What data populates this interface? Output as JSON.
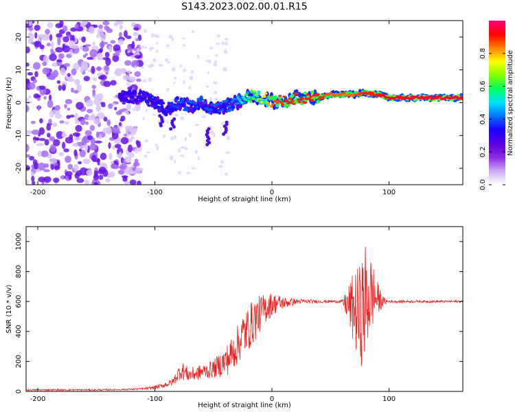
{
  "chart_data": [
    {
      "type": "heatmap",
      "title": "S143.2023.002.00.01.R15",
      "xlabel": "Height of straight line (km)",
      "ylabel": "Frequency (Hz)",
      "xlim": [
        -210,
        163
      ],
      "ylim": [
        -25,
        25
      ],
      "xticks": [
        -200,
        -100,
        0,
        100
      ],
      "yticks": [
        -20,
        -10,
        0,
        10,
        20
      ],
      "colorbar": {
        "label": "Normalized spectral amplitude",
        "range": [
          0,
          1
        ],
        "ticks": [
          "0.0",
          "0.2",
          "0.4",
          "0.6",
          "0.8"
        ],
        "colormap": [
          "#ffffff",
          "#cfa9f5",
          "#8a2be2",
          "#5a00e0",
          "#1e00ff",
          "#0070ff",
          "#00e0ff",
          "#00ff60",
          "#80ff00",
          "#ffff00",
          "#ff8000",
          "#ff0000",
          "#ff0080"
        ]
      },
      "ridge": {
        "x": [
          -130,
          -110,
          -100,
          -90,
          -80,
          -70,
          -60,
          -50,
          -40,
          -30,
          -20,
          -10,
          0,
          10,
          20,
          30,
          40,
          50,
          60,
          70,
          80,
          90,
          100,
          110,
          120,
          130,
          140,
          150,
          163
        ],
        "frequency": [
          2,
          1.5,
          0,
          -2,
          0,
          -1,
          0,
          -2,
          -1,
          0,
          2,
          1.5,
          0.5,
          0.5,
          1.5,
          1.5,
          1.5,
          2.5,
          2.5,
          2.5,
          3,
          2.5,
          1.5,
          1.5,
          1.5,
          1.5,
          1.5,
          1.5,
          1.5
        ],
        "amplitude": [
          0.3,
          0.35,
          0.35,
          0.35,
          0.4,
          0.4,
          0.4,
          0.4,
          0.4,
          0.45,
          0.6,
          0.7,
          0.85,
          0.9,
          0.9,
          0.9,
          0.9,
          0.85,
          0.85,
          0.85,
          0.9,
          0.9,
          0.95,
          0.95,
          0.95,
          0.95,
          0.95,
          0.95,
          0.95
        ]
      },
      "noise_region": {
        "x_from": -210,
        "x_to": -120,
        "max_amplitude": 0.15
      }
    },
    {
      "type": "line",
      "title": "",
      "xlabel": "Height of straight line (km)",
      "ylabel": "SNR (10 * v/v)",
      "xlim": [
        -210,
        163
      ],
      "ylim": [
        0,
        1100
      ],
      "xticks": [
        -200,
        -100,
        0,
        100
      ],
      "yticks": [
        0,
        200,
        400,
        600,
        800,
        1000
      ],
      "color": "#e8211f",
      "series": [
        {
          "x": [
            -210,
            -190,
            -170,
            -150,
            -130,
            -115,
            -105,
            -95,
            -85,
            -78,
            -70,
            -60,
            -50,
            -40,
            -35,
            -30,
            -25,
            -20,
            -15,
            -10,
            -5,
            0,
            5,
            10,
            20,
            30,
            40,
            50,
            60,
            70,
            75,
            80,
            85,
            90,
            95,
            100,
            110,
            120,
            130,
            140,
            150,
            163
          ],
          "values": [
            10,
            10,
            10,
            10,
            12,
            15,
            20,
            35,
            60,
            140,
            110,
            130,
            150,
            200,
            240,
            300,
            380,
            420,
            480,
            520,
            560,
            580,
            590,
            590,
            600,
            600,
            600,
            600,
            600,
            550,
            500,
            600,
            650,
            620,
            600,
            600,
            600,
            600,
            600,
            600,
            600,
            600
          ],
          "spread": [
            5,
            5,
            5,
            5,
            5,
            5,
            10,
            15,
            25,
            60,
            50,
            50,
            60,
            100,
            120,
            130,
            150,
            150,
            150,
            120,
            100,
            80,
            60,
            40,
            20,
            15,
            10,
            10,
            10,
            250,
            350,
            400,
            250,
            120,
            30,
            10,
            8,
            8,
            8,
            8,
            8,
            8
          ]
        }
      ]
    }
  ]
}
